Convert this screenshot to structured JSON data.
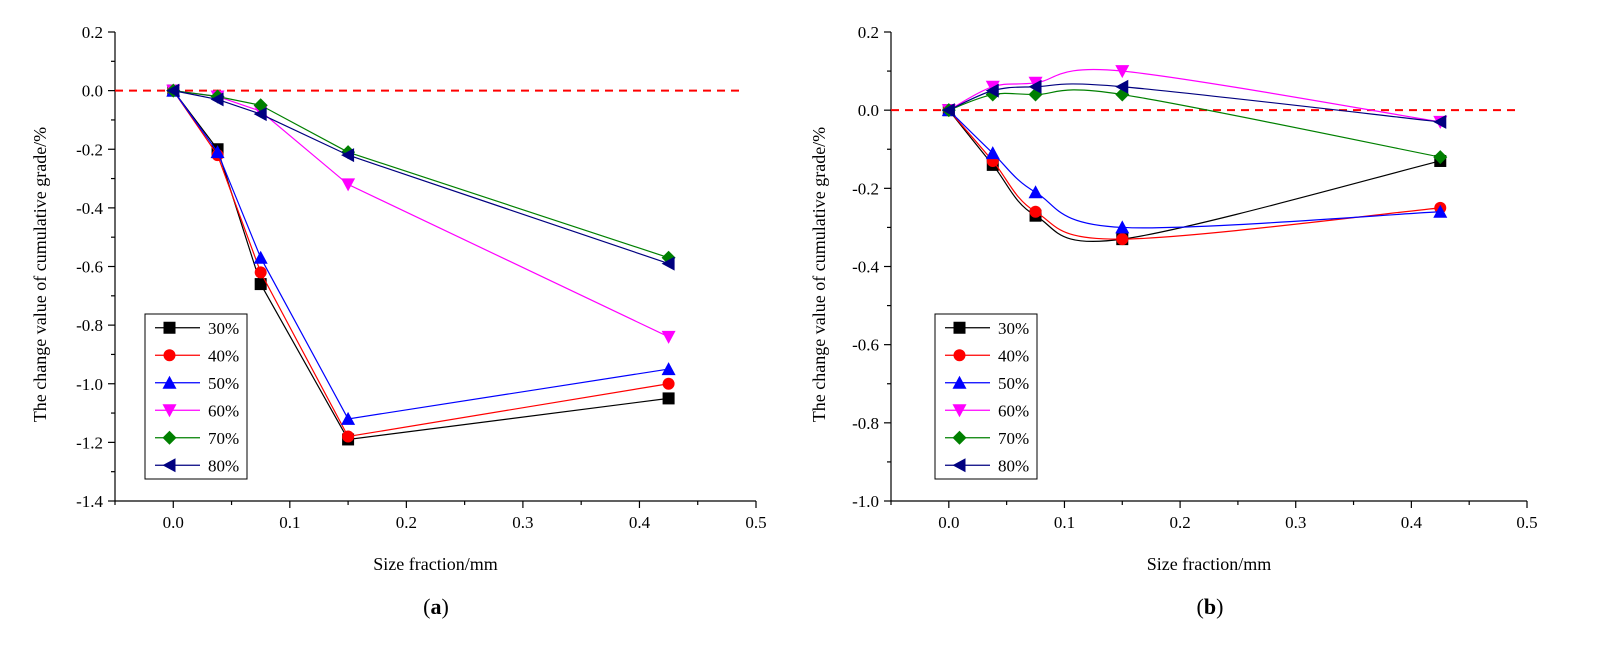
{
  "chart_data": [
    {
      "type": "line",
      "panel_label": "a",
      "xlabel": "Size fraction/mm",
      "ylabel": "The change value of cumulative grade/%",
      "xlim": [
        -0.05,
        0.5
      ],
      "ylim": [
        -1.4,
        0.2
      ],
      "xticks": [
        0.0,
        0.1,
        0.2,
        0.3,
        0.4,
        0.5
      ],
      "xtick_labels": [
        "0.0",
        "0.1",
        "0.2",
        "0.3",
        "0.4",
        "0.5"
      ],
      "yticks": [
        -1.4,
        -1.2,
        -1.0,
        -0.8,
        -0.6,
        -0.4,
        -0.2,
        0.0,
        0.2
      ],
      "ytick_labels": [
        "-1.4",
        "-1.2",
        "-1.0",
        "-0.8",
        "-0.6",
        "-0.4",
        "-0.2",
        "0.0",
        "0.2"
      ],
      "reference_line_y": 0,
      "legend_position": "bottom-left",
      "smooth": false,
      "x": [
        0,
        0.038,
        0.075,
        0.15,
        0.425
      ],
      "series": [
        {
          "name": "30%",
          "color": "#000000",
          "marker": "square",
          "values": [
            0,
            -0.2,
            -0.66,
            -1.19,
            -1.05
          ]
        },
        {
          "name": "40%",
          "color": "#ff0000",
          "marker": "circle",
          "values": [
            0,
            -0.22,
            -0.62,
            -1.18,
            -1.0
          ]
        },
        {
          "name": "50%",
          "color": "#0000ff",
          "marker": "triangle-up",
          "values": [
            0,
            -0.21,
            -0.57,
            -1.12,
            -0.95
          ]
        },
        {
          "name": "60%",
          "color": "#ff00ff",
          "marker": "triangle-down",
          "values": [
            0,
            -0.02,
            -0.07,
            -0.32,
            -0.84
          ]
        },
        {
          "name": "70%",
          "color": "#008000",
          "marker": "diamond",
          "values": [
            0,
            -0.02,
            -0.05,
            -0.21,
            -0.57
          ]
        },
        {
          "name": "80%",
          "color": "#000080",
          "marker": "triangle-left",
          "values": [
            0,
            -0.03,
            -0.08,
            -0.22,
            -0.59
          ]
        }
      ]
    },
    {
      "type": "line",
      "panel_label": "b",
      "xlabel": "Size fraction/mm",
      "ylabel": "The change value of cumulative grade/%",
      "xlim": [
        -0.05,
        0.5
      ],
      "ylim": [
        -1.0,
        0.2
      ],
      "xticks": [
        0.0,
        0.1,
        0.2,
        0.3,
        0.4,
        0.5
      ],
      "xtick_labels": [
        "0.0",
        "0.1",
        "0.2",
        "0.3",
        "0.4",
        "0.5"
      ],
      "yticks": [
        -1.0,
        -0.8,
        -0.6,
        -0.4,
        -0.2,
        0.0,
        0.2
      ],
      "ytick_labels": [
        "-1.0",
        "-0.8",
        "-0.6",
        "-0.4",
        "-0.2",
        "0.0",
        "0.2"
      ],
      "reference_line_y": 0,
      "legend_position": "bottom-left",
      "smooth": true,
      "x": [
        0,
        0.038,
        0.075,
        0.15,
        0.425
      ],
      "series": [
        {
          "name": "30%",
          "color": "#000000",
          "marker": "square",
          "values": [
            0,
            -0.14,
            -0.27,
            -0.33,
            -0.13
          ]
        },
        {
          "name": "40%",
          "color": "#ff0000",
          "marker": "circle",
          "values": [
            0,
            -0.13,
            -0.26,
            -0.33,
            -0.25
          ]
        },
        {
          "name": "50%",
          "color": "#0000ff",
          "marker": "triangle-up",
          "values": [
            0,
            -0.11,
            -0.21,
            -0.3,
            -0.26
          ]
        },
        {
          "name": "60%",
          "color": "#ff00ff",
          "marker": "triangle-down",
          "values": [
            0,
            0.06,
            0.07,
            0.1,
            -0.03
          ]
        },
        {
          "name": "70%",
          "color": "#008000",
          "marker": "diamond",
          "values": [
            0,
            0.04,
            0.04,
            0.04,
            -0.12
          ]
        },
        {
          "name": "80%",
          "color": "#000080",
          "marker": "triangle-left",
          "values": [
            0,
            0.05,
            0.06,
            0.06,
            -0.03
          ]
        }
      ]
    }
  ]
}
